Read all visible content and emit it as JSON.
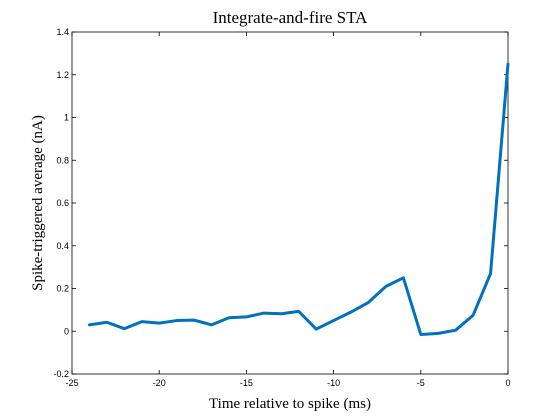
{
  "chart_data": {
    "type": "line",
    "title": "Integrate-and-fire STA",
    "xlabel": "Time relative to spike (ms)",
    "ylabel": "Spike-triggered average (nA)",
    "xlim": [
      -25,
      0
    ],
    "ylim": [
      -0.2,
      1.4
    ],
    "xticks": [
      "-25",
      "-20",
      "-15",
      "-10",
      "-5",
      "0"
    ],
    "yticks": [
      "-0.2",
      "0",
      "0.2",
      "0.4",
      "0.6",
      "0.8",
      "1",
      "1.2",
      "1.4"
    ],
    "grid": false,
    "series": [
      {
        "color": "#0072BD",
        "x": [
          -24,
          -23,
          -22,
          -21,
          -20,
          -19,
          -18,
          -17,
          -16,
          -15,
          -14,
          -13,
          -12,
          -11,
          -10,
          -9,
          -8,
          -7,
          -6,
          -5,
          -4,
          -3,
          -2,
          -1,
          0
        ],
        "y": [
          0.03,
          0.042,
          0.012,
          0.045,
          0.038,
          0.05,
          0.052,
          0.03,
          0.063,
          0.067,
          0.085,
          0.082,
          0.093,
          0.01,
          0.05,
          0.09,
          0.135,
          0.21,
          0.25,
          -0.015,
          -0.01,
          0.005,
          0.075,
          0.27,
          1.25
        ]
      }
    ]
  }
}
